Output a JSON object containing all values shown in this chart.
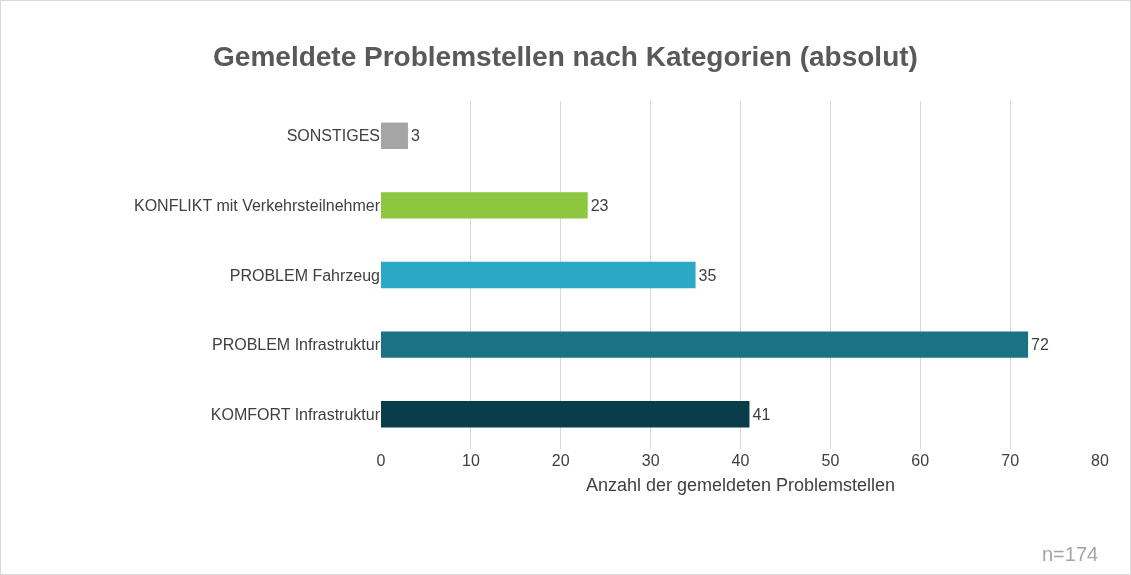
{
  "chart_data": {
    "type": "bar",
    "orientation": "horizontal",
    "title": "Gemeldete Problemstellen nach Kategorien (absolut)",
    "categories": [
      "SONSTIGES",
      "KONFLIKT mit Verkehrsteilnehmer",
      "PROBLEM Fahrzeug",
      "PROBLEM Infrastruktur",
      "KOMFORT Infrastruktur"
    ],
    "values": [
      3,
      23,
      35,
      72,
      41
    ],
    "colors": [
      "#a5a5a5",
      "#8dc63f",
      "#2aa8c4",
      "#1a7385",
      "#0a3d4a"
    ],
    "xlabel": "Anzahl der gemeldeten Problemstellen",
    "xlim": [
      0,
      80
    ],
    "xticks": [
      0,
      10,
      20,
      30,
      40,
      50,
      60,
      70,
      80
    ],
    "grid": "x",
    "data_labels": true,
    "annotations": [
      "n=174"
    ]
  }
}
